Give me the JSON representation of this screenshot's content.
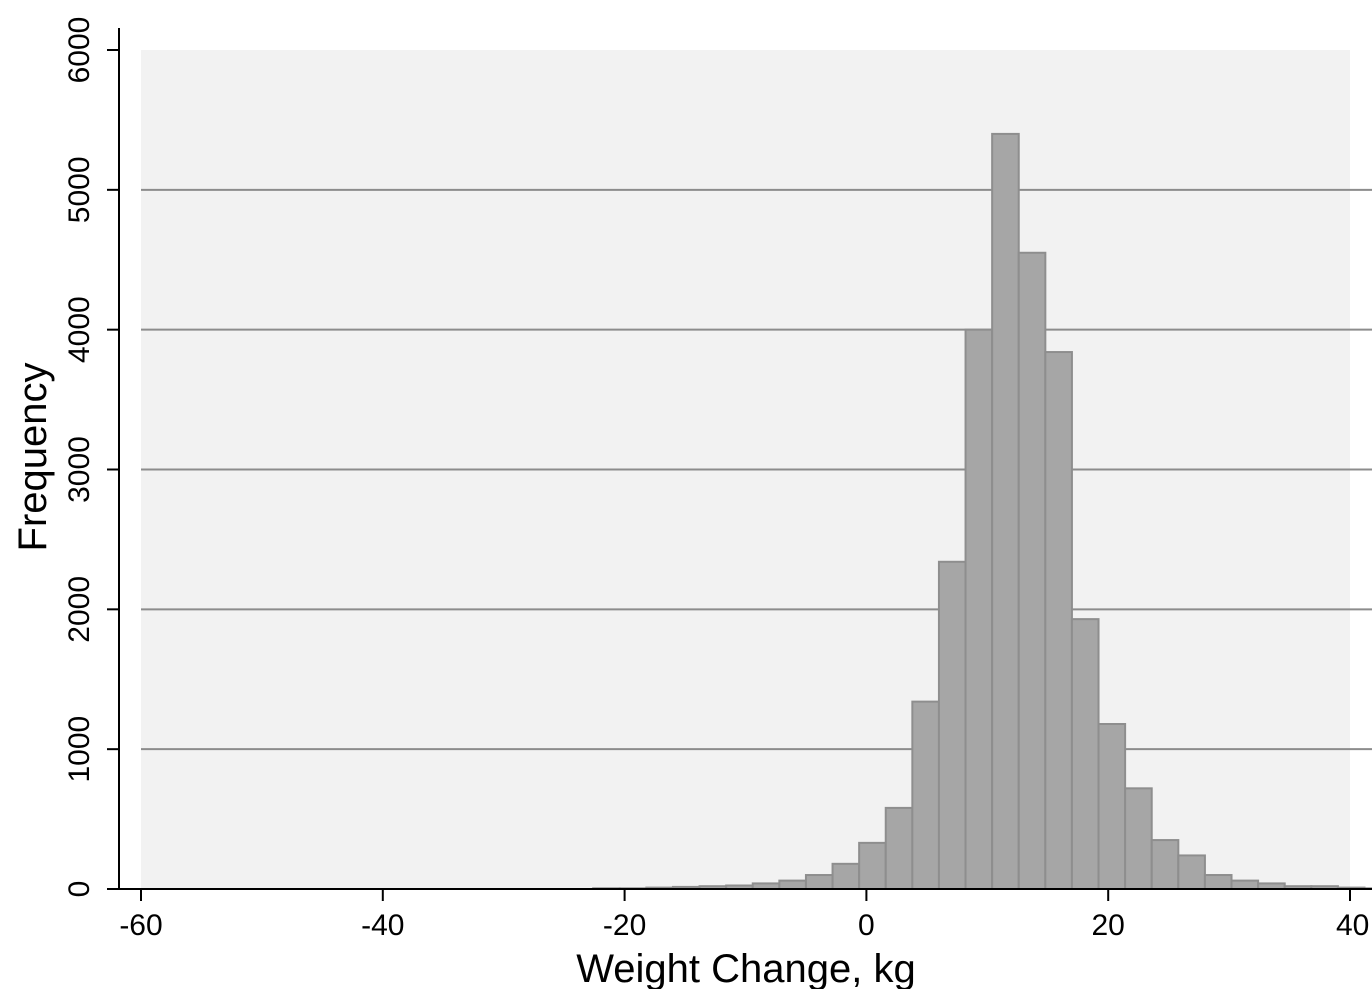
{
  "chart_data": {
    "type": "bar",
    "xlabel": "Weight Change, kg",
    "ylabel": "Frequency",
    "xlim": [
      -60,
      40
    ],
    "ylim": [
      0,
      6000
    ],
    "x_ticks": [
      -60,
      -40,
      -20,
      0,
      20,
      40
    ],
    "y_ticks": [
      0,
      1000,
      2000,
      3000,
      4000,
      5000,
      6000
    ],
    "x_tick_labels": [
      "-60",
      "-40",
      "-20",
      "0",
      "20",
      "40"
    ],
    "y_tick_labels": [
      "0",
      "1000",
      "2000",
      "3000",
      "4000",
      "5000",
      "6000"
    ],
    "grid": "horizontal",
    "bin_width": 2.2,
    "bin_start": -60,
    "values": [
      0,
      0,
      0,
      0,
      0,
      0,
      0,
      0,
      0,
      0,
      0,
      0,
      0,
      0,
      0,
      0,
      0,
      5,
      5,
      10,
      15,
      20,
      25,
      40,
      60,
      100,
      180,
      330,
      580,
      1340,
      2340,
      4000,
      5400,
      4550,
      3840,
      1930,
      1180,
      720,
      350,
      240,
      100,
      60,
      40,
      20,
      20,
      10,
      5
    ],
    "colors": {
      "bar_fill": "#a6a6a6",
      "bar_stroke": "#8e8e8e",
      "plot_bg": "#f2f2f2",
      "grid": "#8c8c8c",
      "axis": "#000000"
    }
  }
}
